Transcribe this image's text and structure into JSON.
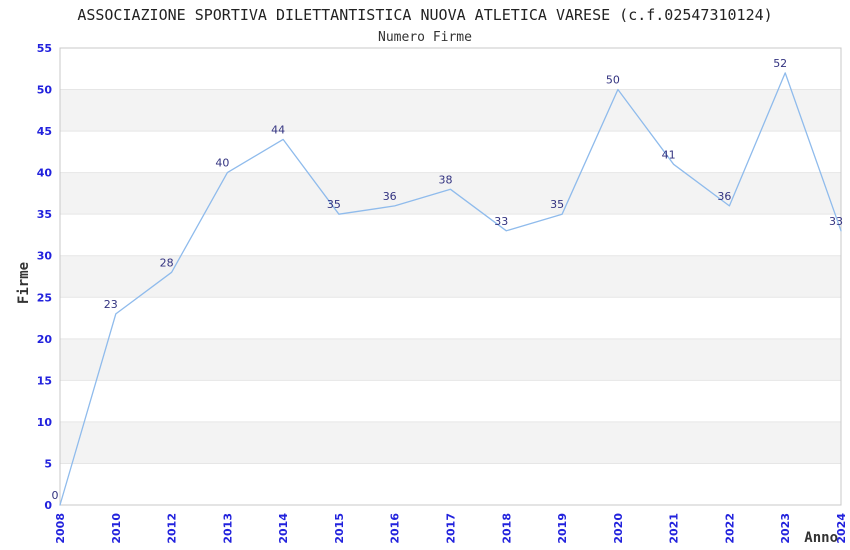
{
  "header": {
    "title": "ASSOCIAZIONE SPORTIVA DILETTANTISTICA NUOVA ATLETICA VARESE (c.f.02547310124)",
    "subtitle": "Numero Firme"
  },
  "chart_data": {
    "type": "line",
    "title": "ASSOCIAZIONE SPORTIVA DILETTANTISTICA NUOVA ATLETICA VARESE (c.f.02547310124)",
    "subtitle": "Numero Firme",
    "xlabel": "Anno",
    "ylabel": "Firme",
    "categories": [
      "2008",
      "2010",
      "2012",
      "2013",
      "2014",
      "2015",
      "2016",
      "2017",
      "2018",
      "2019",
      "2020",
      "2021",
      "2022",
      "2023",
      "2024"
    ],
    "values": [
      0,
      23,
      28,
      40,
      44,
      35,
      36,
      38,
      33,
      35,
      50,
      41,
      36,
      52,
      33
    ],
    "data_labels": [
      "0",
      "23",
      "28",
      "40",
      "44",
      "35",
      "36",
      "38",
      "33",
      "35",
      "50",
      "41",
      "36",
      "52",
      "33"
    ],
    "ylim": [
      0,
      55
    ],
    "ytick_step": 5,
    "ytick_labels": [
      "0",
      "5",
      "10",
      "15",
      "20",
      "25",
      "30",
      "35",
      "40",
      "45",
      "50",
      "55"
    ],
    "grid": "horizontal",
    "banding": "alternate-horizontal",
    "legend": "none",
    "colors": {
      "line": "#8fbbec",
      "tick_label": "#2222dd",
      "data_label": "#333380",
      "band": "#f3f3f3",
      "gridline": "#e6e6e6",
      "plot_border": "#c8c8c8",
      "title": "#222222",
      "axis_title": "#333333",
      "background": "#ffffff"
    }
  }
}
